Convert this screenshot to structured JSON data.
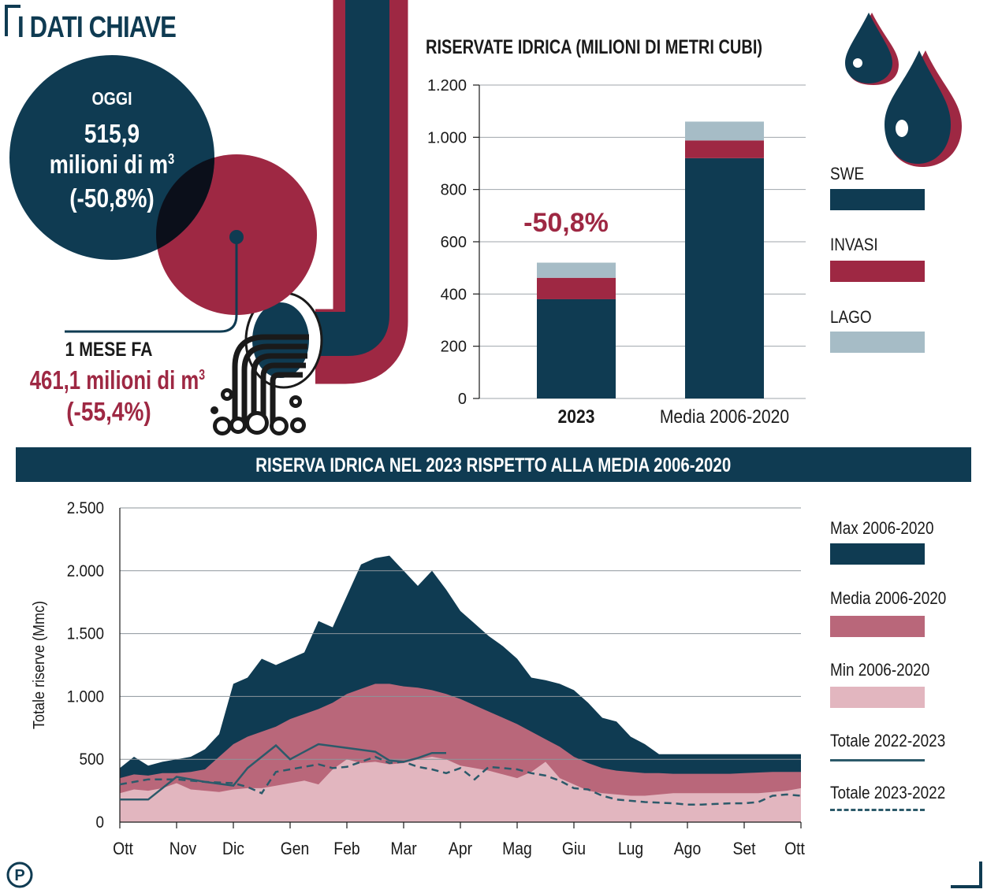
{
  "header": {
    "title": "I DATI CHIAVE"
  },
  "today": {
    "label": "OGGI",
    "value": "515,9",
    "unit_line": "milioni di m",
    "unit_sup": "3",
    "change": "(-50,8%)"
  },
  "month_ago": {
    "label": "1 MESE FA",
    "value_line": "461,1 milioni di m",
    "unit_sup": "3",
    "change": "(-55,4%)"
  },
  "colors": {
    "dark_blue": "#0f3b52",
    "crimson": "#9e2843",
    "rose": "#b9677a",
    "pink": "#e2b6bf",
    "light_gray_blue": "#a6bcc6"
  },
  "icons": [
    "pipe-icon",
    "water-drop-icon",
    "publisher-logo-icon"
  ],
  "bar_chart": {
    "title": "RISERVATE IDRICA (MILIONI DI METRI CUBI)",
    "annotation": "-50,8%",
    "legend": [
      "SWE",
      "INVASI",
      "LAGO"
    ]
  },
  "line_chart": {
    "banner": "RISERVA IDRICA  NEL 2023 RISPETTO ALLA MEDIA 2006-2020",
    "legend": [
      "Max 2006-2020",
      "Media 2006-2020",
      "Min 2006-2020",
      "Totale 2022-2023",
      "Totale 2023-2022"
    ]
  },
  "chart_data": [
    {
      "type": "bar",
      "title": "RISERVATE IDRICA (MILIONI DI METRI CUBI)",
      "stacked": true,
      "categories": [
        "2023",
        "Media 2006-2020"
      ],
      "series": [
        {
          "name": "SWE",
          "color": "#0f3b52",
          "values": [
            380,
            920
          ]
        },
        {
          "name": "INVASI",
          "color": "#9e2843",
          "values": [
            82,
            68
          ]
        },
        {
          "name": "LAGO",
          "color": "#a6bcc6",
          "values": [
            58,
            72
          ]
        }
      ],
      "ylim": [
        0,
        1200
      ],
      "yticks": [
        0,
        200,
        400,
        600,
        800,
        1000,
        1200
      ],
      "ytick_labels": [
        "0",
        "200",
        "400",
        "600",
        "800",
        "1.000",
        "1.200"
      ],
      "annotation": "-50,8%",
      "grid": true,
      "legend_position": "right"
    },
    {
      "type": "area",
      "title": "RISERVA IDRICA  NEL 2023 RISPETTO ALLA MEDIA 2006-2020",
      "ylabel": "Totale riserve  (Mmc)",
      "ylim": [
        0,
        2500
      ],
      "yticks": [
        0,
        500,
        1000,
        1500,
        2000,
        2500
      ],
      "ytick_labels": [
        "0",
        "500",
        "1.000",
        "1.500",
        "2.000",
        "2.500"
      ],
      "x_ticks": [
        "Ott",
        "Nov",
        "Dic",
        "Gen",
        "Feb",
        "Mar",
        "Apr",
        "Mag",
        "Giu",
        "Lug",
        "Ago",
        "Set",
        "Ott"
      ],
      "x_tick_positions": [
        0,
        1,
        2,
        3,
        4,
        5,
        6,
        7,
        8,
        9,
        10,
        11,
        12
      ],
      "grid": true,
      "legend_position": "right",
      "x": [
        0,
        0.25,
        0.5,
        0.75,
        1,
        1.25,
        1.5,
        1.75,
        2,
        2.25,
        2.5,
        2.75,
        3,
        3.25,
        3.5,
        3.75,
        4,
        4.25,
        4.5,
        4.75,
        5,
        5.25,
        5.5,
        5.75,
        6,
        6.25,
        6.5,
        6.75,
        7,
        7.25,
        7.5,
        7.75,
        8,
        8.25,
        8.5,
        8.75,
        9,
        9.25,
        9.5,
        9.75,
        10,
        10.25,
        10.5,
        10.75,
        11,
        11.25,
        11.5,
        11.75,
        12
      ],
      "series": [
        {
          "name": "Max 2006-2020",
          "color": "#0f3b52",
          "values": [
            430,
            520,
            450,
            480,
            500,
            520,
            580,
            700,
            1100,
            1150,
            1300,
            1250,
            1300,
            1350,
            1600,
            1550,
            1800,
            2050,
            2100,
            2120,
            2000,
            1880,
            2000,
            1850,
            1680,
            1580,
            1480,
            1400,
            1300,
            1150,
            1130,
            1100,
            1050,
            950,
            830,
            800,
            680,
            620,
            540,
            540,
            540,
            540,
            540,
            540,
            540,
            540,
            540,
            540,
            540
          ]
        },
        {
          "name": "Media 2006-2020",
          "color": "#b9677a",
          "values": [
            350,
            380,
            370,
            390,
            390,
            400,
            420,
            520,
            620,
            680,
            720,
            760,
            820,
            860,
            900,
            950,
            1020,
            1060,
            1100,
            1100,
            1080,
            1070,
            1050,
            1020,
            980,
            930,
            880,
            830,
            780,
            720,
            660,
            600,
            520,
            470,
            430,
            410,
            400,
            390,
            390,
            385,
            385,
            385,
            385,
            385,
            390,
            395,
            400,
            400,
            400
          ]
        },
        {
          "name": "Min 2006-2020",
          "color": "#e2b6bf",
          "values": [
            230,
            260,
            250,
            270,
            310,
            260,
            250,
            240,
            260,
            270,
            270,
            290,
            310,
            330,
            300,
            420,
            500,
            470,
            480,
            460,
            470,
            500,
            520,
            500,
            450,
            430,
            410,
            380,
            350,
            400,
            480,
            350,
            300,
            250,
            230,
            220,
            210,
            210,
            220,
            230,
            230,
            230,
            230,
            230,
            230,
            230,
            240,
            250,
            270
          ]
        },
        {
          "name": "Totale 2022-2023",
          "color": "#2c5a6a",
          "style": "solid",
          "x": [
            0,
            0.5,
            1,
            1.5,
            2,
            2.25,
            2.5,
            2.75,
            3,
            3.5,
            4,
            4.5,
            4.75,
            5,
            5.25,
            5.5,
            5.75
          ],
          "values": [
            180,
            180,
            360,
            320,
            290,
            430,
            520,
            610,
            500,
            620,
            590,
            560,
            490,
            480,
            510,
            550,
            550
          ]
        },
        {
          "name": "Totale 2023-2022",
          "color": "#2c5a6a",
          "style": "dashed",
          "x": [
            0,
            0.5,
            1,
            1.5,
            2,
            2.25,
            2.5,
            2.75,
            3,
            3.25,
            3.5,
            3.75,
            4,
            4.25,
            4.5,
            4.75,
            5,
            5.25,
            5.5,
            5.75,
            6,
            6.25,
            6.5,
            6.75,
            7,
            7.25,
            7.5,
            7.75,
            8,
            8.25,
            8.5,
            8.75,
            9,
            9.25,
            9.5,
            9.75,
            10,
            10.25,
            10.5,
            10.75,
            11,
            11.25,
            11.5,
            11.75,
            12
          ],
          "values": [
            300,
            340,
            340,
            320,
            310,
            280,
            230,
            400,
            420,
            440,
            460,
            430,
            440,
            480,
            520,
            470,
            480,
            440,
            420,
            390,
            430,
            340,
            440,
            430,
            420,
            390,
            370,
            330,
            270,
            260,
            210,
            180,
            170,
            160,
            155,
            150,
            140,
            140,
            145,
            150,
            150,
            160,
            210,
            220,
            210
          ]
        }
      ]
    }
  ]
}
